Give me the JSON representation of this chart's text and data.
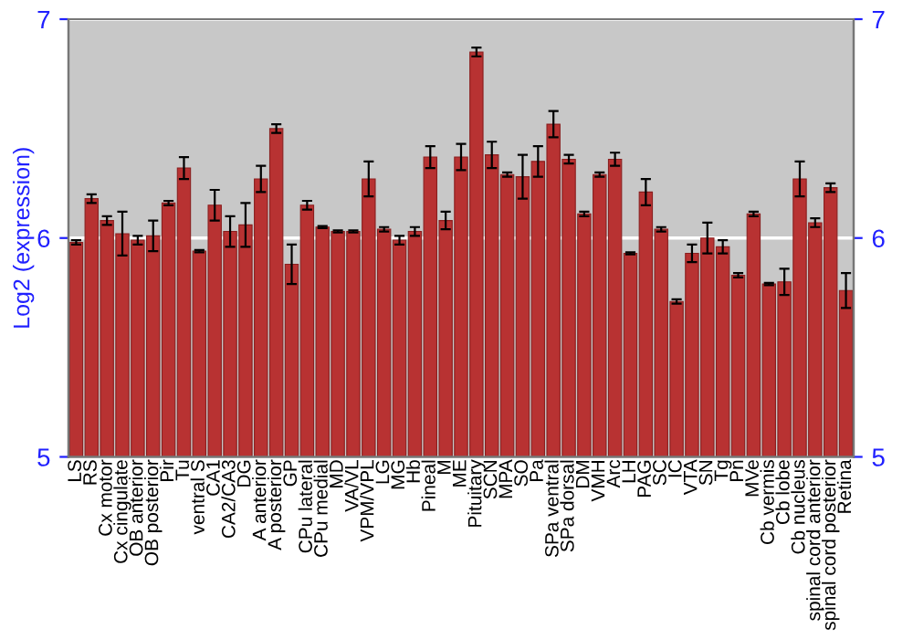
{
  "chart_data": {
    "type": "bar",
    "ylabel": "Log2 (expression)",
    "categories": [
      "LS",
      "RS",
      "Cx motor",
      "Cx cingulate",
      "OB anterior",
      "OB posterior",
      "Pir",
      "Tu",
      "ventral S",
      "CA1",
      "CA2/CA3",
      "DG",
      "A anterior",
      "A posterior",
      "GP",
      "CPu lateral",
      "CPu medial",
      "MD",
      "VA/VL",
      "VPM/VPL",
      "LG",
      "MG",
      "Hb",
      "Pineal",
      "M",
      "ME",
      "Pituitary",
      "SCN",
      "MPA",
      "SO",
      "Pa",
      "SPa ventral",
      "SPa dorsal",
      "DM",
      "VMH",
      "Arc",
      "LH",
      "PAG",
      "SC",
      "IC",
      "VTA",
      "SN",
      "Tg",
      "Pn",
      "MVe",
      "Cb vermis",
      "Cb lobe",
      "Cb nucleus",
      "spinal cord anterior",
      "spinal cord posterior",
      "Retina"
    ],
    "values": [
      5.98,
      6.18,
      6.08,
      6.02,
      5.99,
      6.01,
      6.16,
      6.32,
      5.94,
      6.15,
      6.03,
      6.06,
      6.27,
      6.5,
      5.88,
      6.15,
      6.05,
      6.03,
      6.03,
      6.27,
      6.04,
      5.99,
      6.03,
      6.37,
      6.08,
      6.37,
      6.85,
      6.38,
      6.29,
      6.28,
      6.35,
      6.52,
      6.36,
      6.11,
      6.29,
      6.36,
      5.93,
      6.21,
      6.04,
      5.71,
      5.93,
      6.0,
      5.96,
      5.83,
      6.11,
      5.79,
      5.8,
      6.27,
      6.07,
      6.23,
      5.76
    ],
    "errors": [
      0.01,
      0.02,
      0.02,
      0.1,
      0.02,
      0.07,
      0.01,
      0.05,
      0.005,
      0.07,
      0.07,
      0.1,
      0.06,
      0.02,
      0.09,
      0.02,
      0.005,
      0.005,
      0.005,
      0.08,
      0.01,
      0.02,
      0.02,
      0.05,
      0.04,
      0.06,
      0.02,
      0.06,
      0.01,
      0.1,
      0.07,
      0.06,
      0.02,
      0.01,
      0.01,
      0.03,
      0.005,
      0.06,
      0.01,
      0.01,
      0.04,
      0.07,
      0.03,
      0.01,
      0.01,
      0.005,
      0.06,
      0.08,
      0.02,
      0.02,
      0.08
    ],
    "color": "#b83232",
    "ylim": [
      5,
      7
    ],
    "yticks": [
      5,
      6,
      7
    ],
    "y2lim": [
      5,
      7
    ],
    "y2ticks": [
      5,
      6,
      7
    ],
    "grid": "y"
  }
}
